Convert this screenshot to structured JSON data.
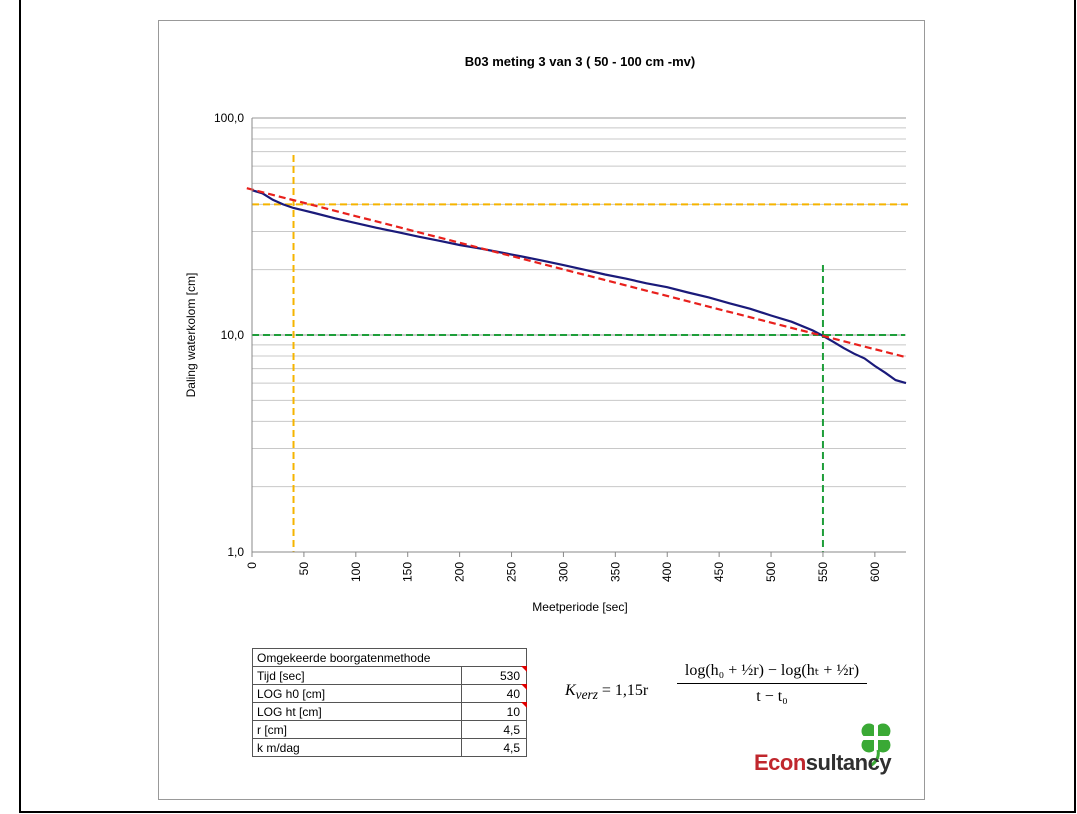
{
  "chart_data": {
    "type": "line",
    "title": "B03 meting 3 van 3 ( 50 - 100 cm -mv)",
    "xlabel": "Meetperiode [sec]",
    "ylabel": "Daling waterkolom [cm]",
    "xlim": [
      0,
      630
    ],
    "ylim": [
      1,
      100
    ],
    "yscale": "log",
    "x_ticks": [
      0,
      50,
      100,
      150,
      200,
      250,
      300,
      350,
      400,
      450,
      500,
      550,
      600
    ],
    "x_tick_labels": [
      "0",
      "50",
      "100",
      "150",
      "200",
      "250",
      "300",
      "350",
      "400",
      "450",
      "500",
      "550",
      "600"
    ],
    "y_ticks": [
      1,
      10,
      100
    ],
    "y_tick_labels": [
      "1,0",
      "10,0",
      "100,0"
    ],
    "grid": "horizontal-minor",
    "series": [
      {
        "color": "#1a1a7a",
        "x": [
          0,
          10,
          20,
          30,
          40,
          50,
          60,
          80,
          100,
          120,
          140,
          160,
          180,
          200,
          220,
          240,
          260,
          280,
          300,
          320,
          340,
          360,
          380,
          400,
          420,
          440,
          460,
          480,
          500,
          520,
          540,
          550,
          560,
          570,
          580,
          590,
          600,
          610,
          620,
          630
        ],
        "y": [
          46.5,
          45,
          42,
          40,
          38.5,
          37.5,
          36.5,
          34.5,
          32.8,
          31.2,
          29.8,
          28.4,
          27.2,
          26,
          25,
          24,
          23,
          22,
          21,
          20,
          19,
          18.2,
          17.3,
          16.6,
          15.7,
          14.9,
          14,
          13.2,
          12.3,
          11.5,
          10.5,
          9.9,
          9.3,
          8.7,
          8.2,
          7.8,
          7.2,
          6.7,
          6.2,
          6.0
        ]
      },
      {
        "color": "#e8201c",
        "style": "dashed",
        "x": [
          -5,
          630
        ],
        "y": [
          47.5,
          7.9
        ]
      }
    ],
    "reference_lines": [
      {
        "axis": "x",
        "value": 40,
        "color": "#f5b400"
      },
      {
        "axis": "y",
        "value": 40,
        "color": "#f5b400"
      },
      {
        "axis": "x",
        "value": 550,
        "color": "#1e9e3a"
      },
      {
        "axis": "y",
        "value": 10,
        "color": "#1e9e3a"
      }
    ]
  },
  "table": {
    "header": "Omgekeerde boorgatenmethode",
    "rows": [
      {
        "label": "Tijd [sec]",
        "value": "530"
      },
      {
        "label": "LOG h0 [cm]",
        "value": "40"
      },
      {
        "label": "LOG ht [cm]",
        "value": "10"
      },
      {
        "label": "r [cm]",
        "value": "4,5"
      },
      {
        "label": "k m/dag",
        "value": "4,5"
      }
    ]
  },
  "formula": {
    "lhs_var": "K",
    "lhs_sub": "verz",
    "lhs_rest": " = 1,15r",
    "numerator": "log(h₀ + ½r) − log(hₜ + ½r)",
    "denominator": "t − t₀"
  },
  "logo": {
    "text_accent": "Econ",
    "text_rest": "sultancy",
    "leaf_color": "#3aa935"
  }
}
